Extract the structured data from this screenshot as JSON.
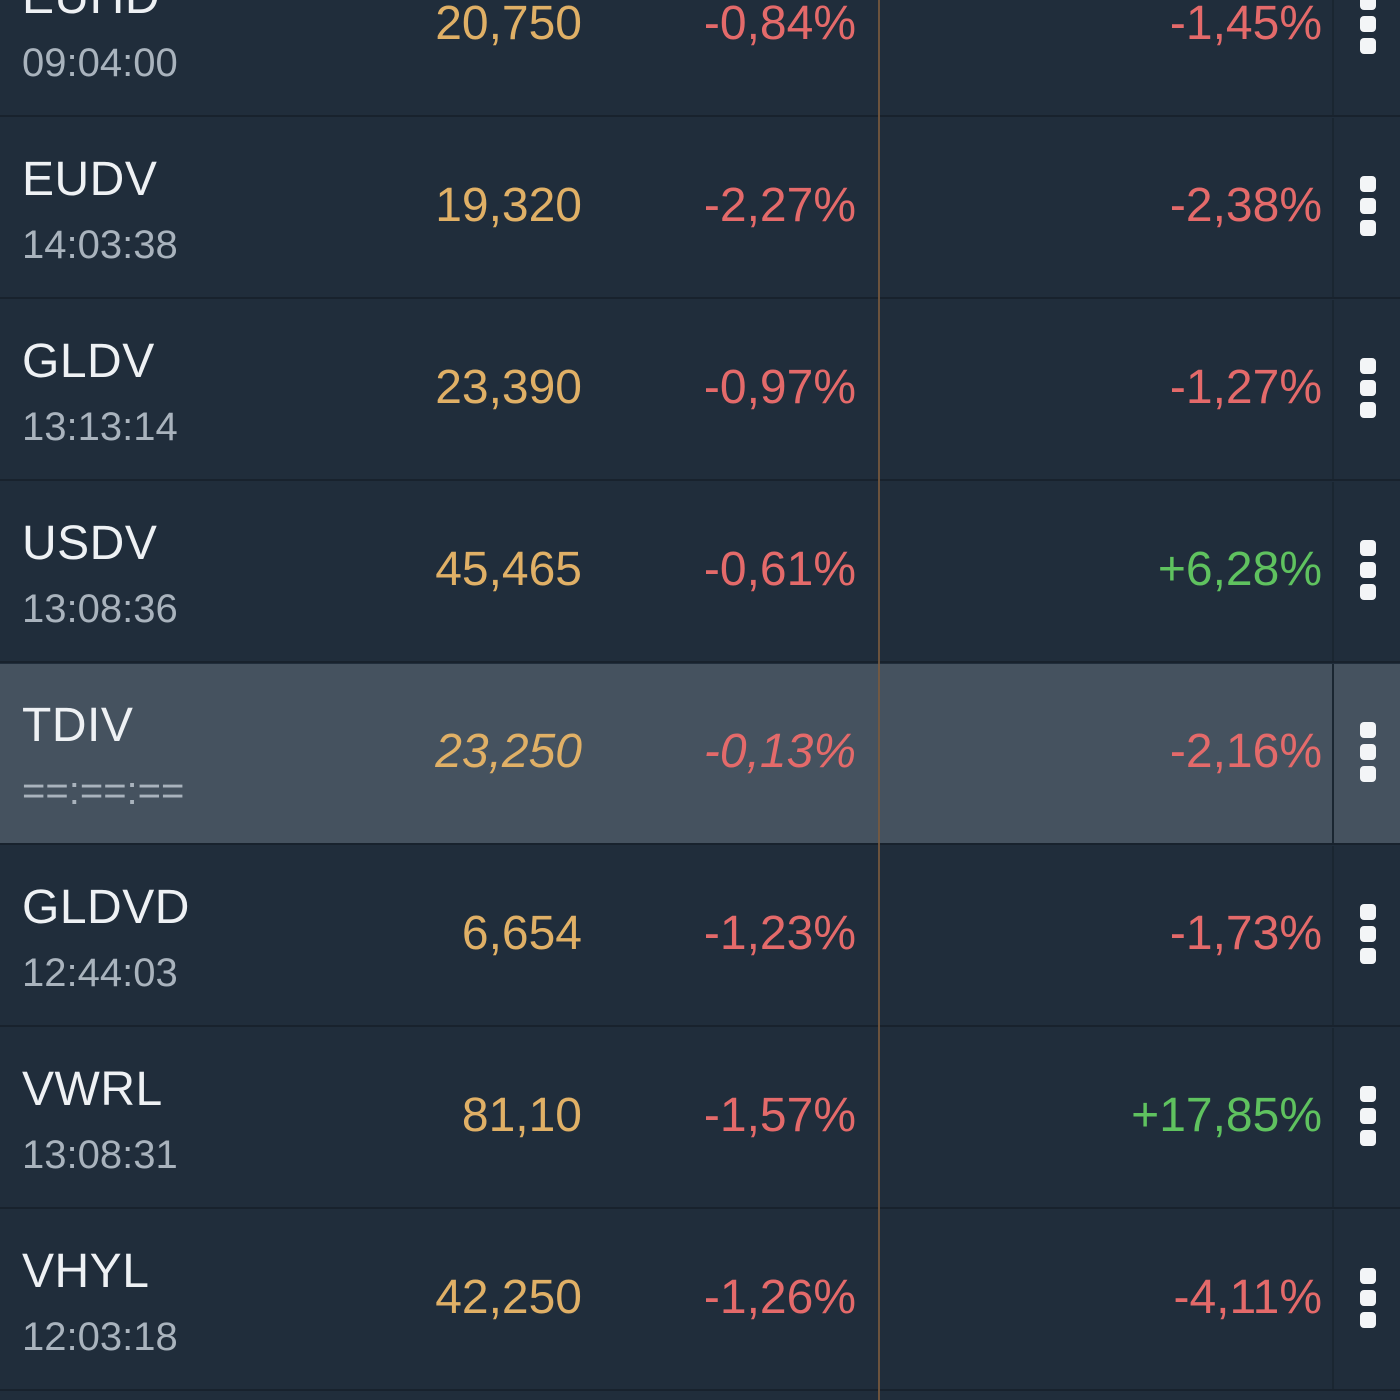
{
  "colors": {
    "background": "#202d3b",
    "highlight_row": "#45525f",
    "price": "#e0b066",
    "negative": "#e46a6a",
    "positive": "#5fc25f",
    "symbol": "#eef1f4",
    "time": "#a9b3bd",
    "divider": "#7a5a3e"
  },
  "watchlist": {
    "rows": [
      {
        "symbol": "EUHD",
        "time": "09:04:00",
        "price": "20,750",
        "day_change": "-0,84%",
        "day_sign": "negative",
        "total_change": "-1,45%",
        "total_sign": "negative",
        "highlight": false,
        "menu_icon": "more-vertical-icon"
      },
      {
        "symbol": "EUDV",
        "time": "14:03:38",
        "price": "19,320",
        "day_change": "-2,27%",
        "day_sign": "negative",
        "total_change": "-2,38%",
        "total_sign": "negative",
        "highlight": false,
        "menu_icon": "more-vertical-icon"
      },
      {
        "symbol": "GLDV",
        "time": "13:13:14",
        "price": "23,390",
        "day_change": "-0,97%",
        "day_sign": "negative",
        "total_change": "-1,27%",
        "total_sign": "negative",
        "highlight": false,
        "menu_icon": "more-vertical-icon"
      },
      {
        "symbol": "USDV",
        "time": "13:08:36",
        "price": "45,465",
        "day_change": "-0,61%",
        "day_sign": "negative",
        "total_change": "+6,28%",
        "total_sign": "positive",
        "highlight": false,
        "menu_icon": "more-vertical-icon"
      },
      {
        "symbol": "TDIV",
        "time": "==:==:==",
        "price": "23,250",
        "day_change": "-0,13%",
        "day_sign": "negative",
        "total_change": "-2,16%",
        "total_sign": "negative",
        "highlight": true,
        "menu_icon": "more-vertical-icon"
      },
      {
        "symbol": "GLDVD",
        "time": "12:44:03",
        "price": "6,654",
        "day_change": "-1,23%",
        "day_sign": "negative",
        "total_change": "-1,73%",
        "total_sign": "negative",
        "highlight": false,
        "menu_icon": "more-vertical-icon"
      },
      {
        "symbol": "VWRL",
        "time": "13:08:31",
        "price": "81,10",
        "day_change": "-1,57%",
        "day_sign": "negative",
        "total_change": "+17,85%",
        "total_sign": "positive",
        "highlight": false,
        "menu_icon": "more-vertical-icon"
      },
      {
        "symbol": "VHYL",
        "time": "12:03:18",
        "price": "42,250",
        "day_change": "-1,26%",
        "day_sign": "negative",
        "total_change": "-4,11%",
        "total_sign": "negative",
        "highlight": false,
        "menu_icon": "more-vertical-icon"
      }
    ]
  }
}
